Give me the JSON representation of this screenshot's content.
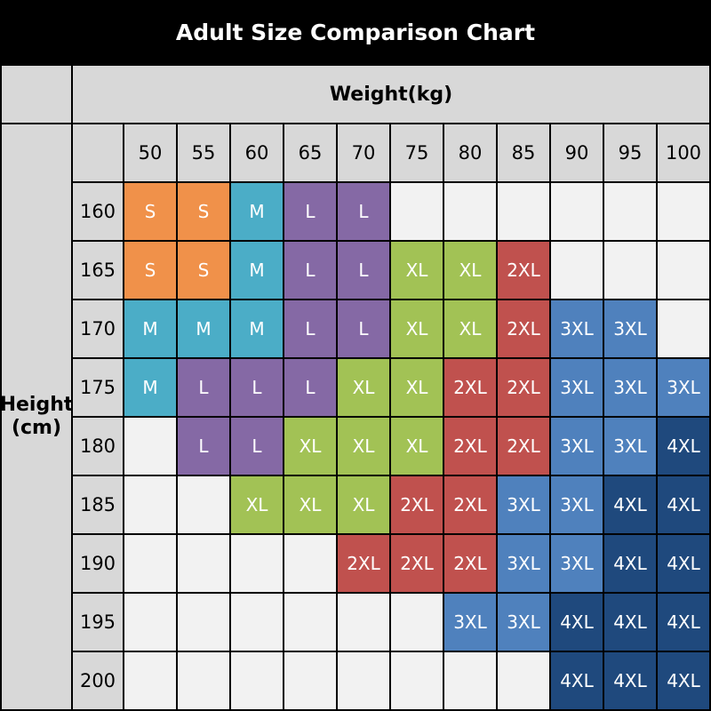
{
  "title": "Adult Size Comparison Chart",
  "height_label": {
    "line1": "Height",
    "line2": "(cm)"
  },
  "chart_data": {
    "type": "heatmap",
    "title": "Adult Size Comparison Chart",
    "x_axis_title": "Weight(kg)",
    "y_axis_title": "Height (cm)",
    "x_categories": [
      "50",
      "55",
      "60",
      "65",
      "70",
      "75",
      "80",
      "85",
      "90",
      "95",
      "100"
    ],
    "y_categories": [
      "160",
      "165",
      "170",
      "175",
      "180",
      "185",
      "190",
      "195",
      "200"
    ],
    "cells": [
      [
        "S",
        "S",
        "M",
        "L",
        "L",
        "",
        "",
        "",
        "",
        "",
        ""
      ],
      [
        "S",
        "S",
        "M",
        "L",
        "L",
        "XL",
        "XL",
        "2XL",
        "",
        "",
        ""
      ],
      [
        "M",
        "M",
        "M",
        "L",
        "L",
        "XL",
        "XL",
        "2XL",
        "3XL",
        "3XL",
        ""
      ],
      [
        "M",
        "L",
        "L",
        "L",
        "XL",
        "XL",
        "2XL",
        "2XL",
        "3XL",
        "3XL",
        "3XL"
      ],
      [
        "",
        "L",
        "L",
        "XL",
        "XL",
        "XL",
        "2XL",
        "2XL",
        "3XL",
        "3XL",
        "4XL"
      ],
      [
        "",
        "",
        "XL",
        "XL",
        "XL",
        "2XL",
        "2XL",
        "3XL",
        "3XL",
        "4XL",
        "4XL"
      ],
      [
        "",
        "",
        "",
        "",
        "2XL",
        "2XL",
        "2XL",
        "3XL",
        "3XL",
        "4XL",
        "4XL"
      ],
      [
        "",
        "",
        "",
        "",
        "",
        "",
        "3XL",
        "3XL",
        "4XL",
        "4XL",
        "4XL"
      ],
      [
        "",
        "",
        "",
        "",
        "",
        "",
        "",
        "",
        "4XL",
        "4XL",
        "4XL"
      ]
    ],
    "size_legend": [
      {
        "size": "S",
        "color": "#F0914A"
      },
      {
        "size": "M",
        "color": "#4BADC7"
      },
      {
        "size": "L",
        "color": "#8569A5"
      },
      {
        "size": "XL",
        "color": "#A2C255"
      },
      {
        "size": "2XL",
        "color": "#C0514E"
      },
      {
        "size": "3XL",
        "color": "#4F81BD"
      },
      {
        "size": "4XL",
        "color": "#1F497D"
      }
    ]
  },
  "colors": {
    "background": "#000000",
    "title_text": "#FFFFFF",
    "header_bg": "#D8D8D8",
    "empty_cell_bg": "#F2F2F2",
    "cell_text": "#FFFFFF",
    "header_text": "#000000",
    "grid_line": "#000000"
  }
}
